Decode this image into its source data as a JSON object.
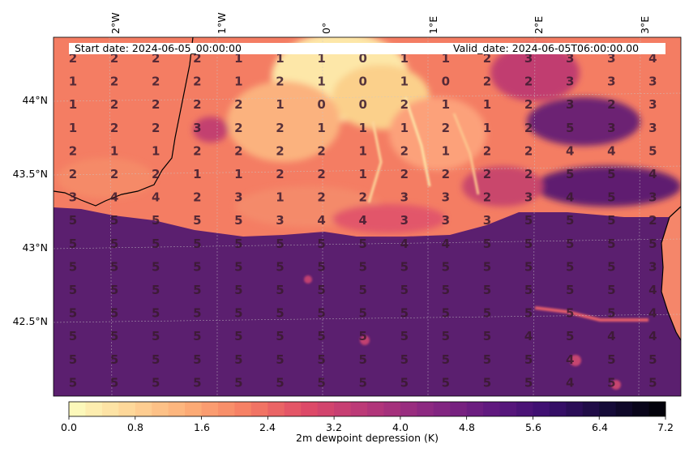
{
  "header": {
    "start_date": "Start date: 2024-06-05_00:00:00",
    "valid_date": "Valid_date: 2024-06-05T06:00:00.00"
  },
  "map": {
    "lon_labels": [
      "2°W",
      "1°W",
      "0°",
      "1°E",
      "2°E",
      "3°E"
    ],
    "lat_labels": [
      "44°N",
      "43.5°N",
      "43°N",
      "42.5°N"
    ],
    "colormap": "magma_r",
    "grid_values": [
      [
        2,
        2,
        2,
        2,
        1,
        1,
        1,
        0,
        1,
        1,
        2,
        3,
        3,
        3,
        4
      ],
      [
        1,
        2,
        2,
        2,
        1,
        2,
        1,
        0,
        1,
        0,
        2,
        2,
        3,
        3,
        3
      ],
      [
        1,
        2,
        2,
        2,
        2,
        1,
        0,
        0,
        2,
        1,
        1,
        2,
        3,
        2,
        3
      ],
      [
        1,
        2,
        2,
        3,
        2,
        2,
        1,
        1,
        1,
        2,
        1,
        2,
        5,
        3,
        3
      ],
      [
        2,
        1,
        1,
        2,
        2,
        2,
        2,
        1,
        2,
        1,
        2,
        2,
        4,
        4,
        5
      ],
      [
        2,
        2,
        2,
        1,
        1,
        2,
        2,
        1,
        2,
        2,
        2,
        2,
        5,
        5,
        4
      ],
      [
        3,
        4,
        4,
        2,
        3,
        1,
        2,
        2,
        3,
        3,
        2,
        3,
        4,
        5,
        3
      ],
      [
        5,
        5,
        5,
        5,
        5,
        3,
        4,
        4,
        3,
        3,
        3,
        5,
        5,
        5,
        2
      ],
      [
        5,
        5,
        5,
        5,
        5,
        5,
        5,
        5,
        4,
        4,
        5,
        5,
        5,
        5,
        5
      ],
      [
        5,
        5,
        5,
        5,
        5,
        5,
        5,
        5,
        5,
        5,
        5,
        5,
        5,
        5,
        3
      ],
      [
        5,
        5,
        5,
        5,
        5,
        5,
        5,
        5,
        5,
        5,
        5,
        5,
        5,
        5,
        4
      ],
      [
        5,
        5,
        5,
        5,
        5,
        5,
        5,
        5,
        5,
        5,
        5,
        5,
        5,
        5,
        4
      ],
      [
        5,
        5,
        5,
        5,
        5,
        5,
        5,
        5,
        5,
        5,
        5,
        4,
        5,
        4,
        4
      ],
      [
        5,
        5,
        5,
        5,
        5,
        5,
        5,
        5,
        5,
        5,
        5,
        5,
        4,
        5,
        5
      ],
      [
        5,
        5,
        5,
        5,
        5,
        5,
        5,
        5,
        5,
        5,
        5,
        5,
        4,
        5,
        5
      ]
    ]
  },
  "colorbar": {
    "label": "2m dewpoint depression (K)",
    "ticks": [
      "0.0",
      "0.8",
      "1.6",
      "2.4",
      "3.2",
      "4.0",
      "4.8",
      "5.6",
      "6.4",
      "7.2"
    ],
    "min": 0,
    "max": 7.2,
    "steps": 36
  }
}
